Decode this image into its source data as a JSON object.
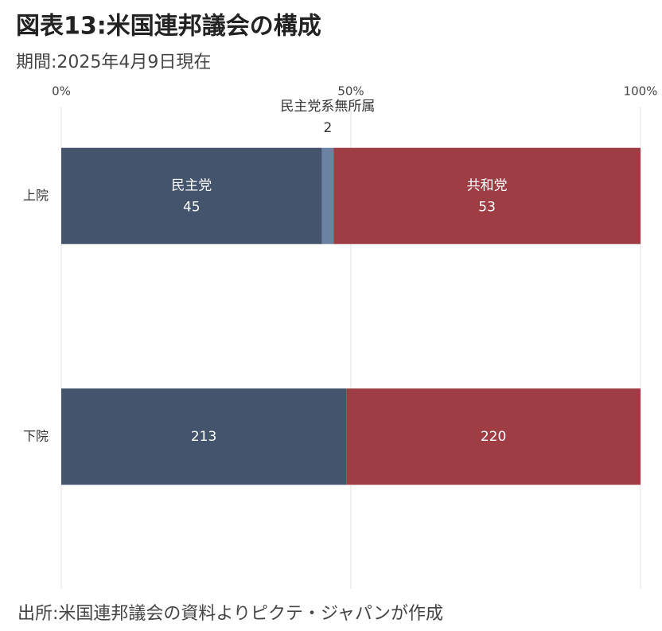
{
  "chart_data": {
    "type": "bar",
    "orientation": "horizontal",
    "stack": "percent",
    "title": "図表13:米国連邦議会の構成",
    "subtitle": "期間:2025年4月9日現在",
    "source": "出所:米国連邦議会の資料よりピクテ・ジャパンが作成",
    "categories": [
      "上院",
      "下院"
    ],
    "series": [
      {
        "name": "民主党",
        "color": "#43546c",
        "values": [
          45,
          213
        ]
      },
      {
        "name": "民主党系無所属",
        "color": "#6b82a3",
        "values": [
          2,
          null
        ]
      },
      {
        "name": "共和党",
        "color": "#9e3d44",
        "values": [
          53,
          220
        ]
      }
    ],
    "xlim": [
      0,
      100
    ],
    "xticks": [
      {
        "value": 0,
        "label": "0%"
      },
      {
        "value": 50,
        "label": "50%"
      },
      {
        "value": 100,
        "label": "100%"
      }
    ],
    "grid": true
  }
}
